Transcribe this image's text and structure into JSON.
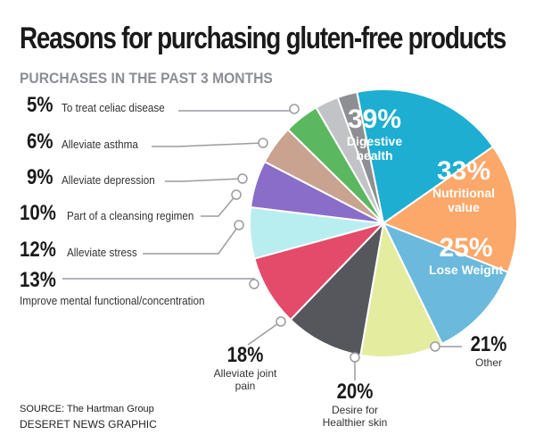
{
  "title": "Reasons for purchasing gluten-free products",
  "subtitle": "PURCHASES IN THE PAST 3 MONTHS",
  "source": "SOURCE: The Hartman Group",
  "credit": "DESERET NEWS GRAPHIC",
  "chart_data": {
    "type": "pie",
    "title": "Reasons for purchasing gluten-free products",
    "subtitle": "PURCHASES IN THE PAST 3 MONTHS",
    "slices": [
      {
        "pct_label": "39%",
        "label": "Digestive health",
        "value": 39,
        "color": "#1daed1"
      },
      {
        "pct_label": "33%",
        "label": "Nutritional value",
        "value": 33,
        "color": "#fba86a"
      },
      {
        "pct_label": "25%",
        "label": "Lose Weight",
        "value": 25,
        "color": "#6bb9dd"
      },
      {
        "pct_label": "21%",
        "label": "Other",
        "value": 21,
        "color": "#e4eca0"
      },
      {
        "pct_label": "20%",
        "label": "Desire for Healthier skin",
        "value": 20,
        "color": "#55575c"
      },
      {
        "pct_label": "18%",
        "label": "Alleviate joint pain",
        "value": 18,
        "color": "#e44b6a"
      },
      {
        "pct_label": "13%",
        "label": "Improve mental functional/concentration",
        "value": 13,
        "color": "#b9eef0"
      },
      {
        "pct_label": "12%",
        "label": "Alleviate stress",
        "value": 12,
        "color": "#8a6cc9"
      },
      {
        "pct_label": "10%",
        "label": "Part of a cleansing regimen",
        "value": 10,
        "color": "#c9a390"
      },
      {
        "pct_label": "9%",
        "label": "Alleviate depression",
        "value": 9,
        "color": "#5cb860"
      },
      {
        "pct_label": "6%",
        "label": "Alleviate asthma",
        "value": 6,
        "color": "#c2c3c6"
      },
      {
        "pct_label": "5%",
        "label": "To treat celiac disease",
        "value": 5,
        "color": "#8d8f93"
      }
    ]
  }
}
